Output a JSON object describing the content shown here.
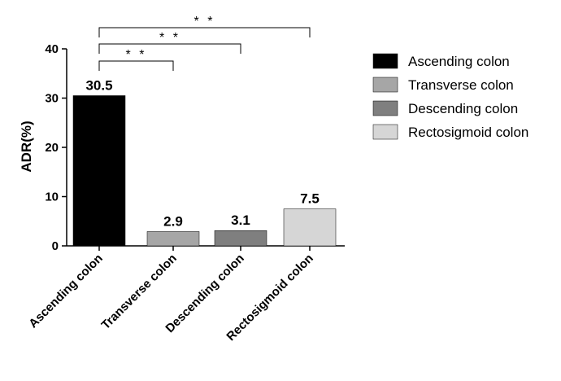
{
  "chart_data": {
    "type": "bar",
    "categories": [
      "Ascending colon",
      "Transverse colon",
      "Descending  colon",
      "Rectosigmoid colon"
    ],
    "values": [
      30.5,
      2.9,
      3.1,
      7.5
    ],
    "data_labels": [
      "30.5",
      "2.9",
      "3.1",
      "7.5"
    ],
    "colors": [
      "#000000",
      "#a6a6a6",
      "#7f7f7f",
      "#d6d6d6"
    ],
    "title": "",
    "xlabel": "",
    "ylabel": "ADR(%)",
    "ylim": [
      0,
      40
    ],
    "yticks": [
      0,
      10,
      20,
      30,
      40
    ],
    "ytick_labels": [
      "0",
      "10",
      "20",
      "30",
      "40"
    ],
    "grid": false,
    "legend_position": "right",
    "legend": [
      {
        "label": "Ascending colon",
        "color": "#000000"
      },
      {
        "label": "Transverse colon",
        "color": "#a6a6a6"
      },
      {
        "label": "Descending  colon",
        "color": "#7f7f7f"
      },
      {
        "label": "Rectosigmoid colon",
        "color": "#d6d6d6"
      }
    ],
    "annotations": [
      {
        "from": "Ascending colon",
        "to": "Transverse colon",
        "text": "* *"
      },
      {
        "from": "Ascending colon",
        "to": "Descending  colon",
        "text": "* *"
      },
      {
        "from": "Ascending colon",
        "to": "Rectosigmoid colon",
        "text": "* *"
      }
    ]
  }
}
